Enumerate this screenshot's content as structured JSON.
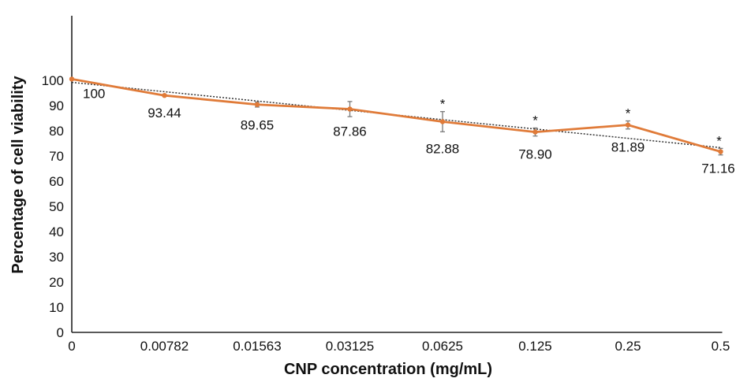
{
  "chart_data": {
    "type": "line",
    "xlabel": "CNP concentration (mg/mL)",
    "ylabel": "Percentage of cell viability",
    "categories": [
      "0",
      "0.00782",
      "0.01563",
      "0.03125",
      "0.0625",
      "0.125",
      "0.25",
      "0.5"
    ],
    "yticks": [
      "0",
      "10",
      "20",
      "30",
      "40",
      "50",
      "60",
      "70",
      "80",
      "90",
      "100"
    ],
    "ylim": [
      0,
      100
    ],
    "series": [
      {
        "values": [
          100,
          93.44,
          89.65,
          87.86,
          82.88,
          78.9,
          81.89,
          71.16
        ],
        "plotted": [
          100.5,
          94.0,
          90.4,
          88.6,
          83.6,
          79.5,
          82.3,
          71.7
        ],
        "error": [
          0,
          0.3,
          1.0,
          3.0,
          4.0,
          1.6,
          1.6,
          1.3
        ],
        "labels": [
          "100",
          "93.44",
          "89.65",
          "87.86",
          "82.88",
          "78.90",
          "81.89",
          "71.16"
        ],
        "significant": [
          false,
          false,
          false,
          false,
          true,
          true,
          true,
          true
        ],
        "significance_mark": "*",
        "color": "#e07b39"
      }
    ],
    "trendline": {
      "style": "dotted",
      "color": "#333333",
      "start": 99.2,
      "end": 73.3
    },
    "grid": false,
    "legend": "none"
  }
}
